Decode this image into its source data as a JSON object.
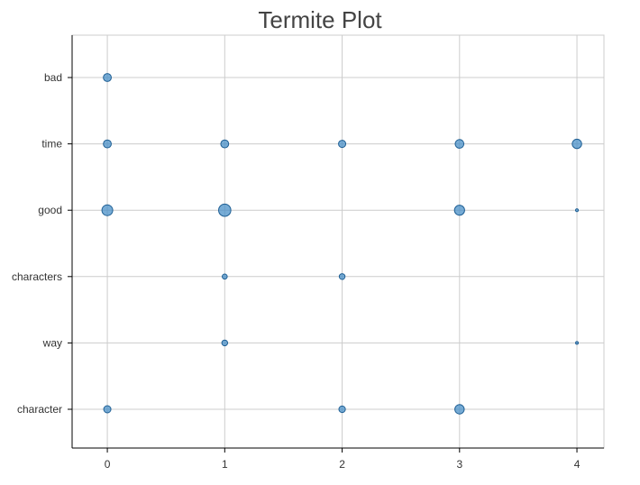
{
  "chart_data": {
    "type": "scatter",
    "title": "Termite Plot",
    "xlabel": "",
    "ylabel": "",
    "x_ticks": [
      "0",
      "1",
      "2",
      "3",
      "4"
    ],
    "y_categories": [
      "character",
      "way",
      "characters",
      "good",
      "time",
      "bad"
    ],
    "xlim": [
      -0.3,
      4.23
    ],
    "grid": true,
    "colors": {
      "fill": "#4a90c8",
      "stroke": "#1f5f94"
    },
    "size_encoding": "relative weight",
    "points": [
      {
        "x": 0,
        "y": "bad",
        "weight": 0.55
      },
      {
        "x": 0,
        "y": "time",
        "weight": 0.55
      },
      {
        "x": 1,
        "y": "time",
        "weight": 0.55
      },
      {
        "x": 2,
        "y": "time",
        "weight": 0.5
      },
      {
        "x": 3,
        "y": "time",
        "weight": 0.6
      },
      {
        "x": 4,
        "y": "time",
        "weight": 0.65
      },
      {
        "x": 0,
        "y": "good",
        "weight": 0.75
      },
      {
        "x": 1,
        "y": "good",
        "weight": 0.85
      },
      {
        "x": 3,
        "y": "good",
        "weight": 0.7
      },
      {
        "x": 4,
        "y": "good",
        "weight": 0.2
      },
      {
        "x": 1,
        "y": "characters",
        "weight": 0.35
      },
      {
        "x": 2,
        "y": "characters",
        "weight": 0.4
      },
      {
        "x": 1,
        "y": "way",
        "weight": 0.4
      },
      {
        "x": 4,
        "y": "way",
        "weight": 0.1
      },
      {
        "x": 0,
        "y": "character",
        "weight": 0.5
      },
      {
        "x": 2,
        "y": "character",
        "weight": 0.45
      },
      {
        "x": 3,
        "y": "character",
        "weight": 0.65
      }
    ]
  }
}
